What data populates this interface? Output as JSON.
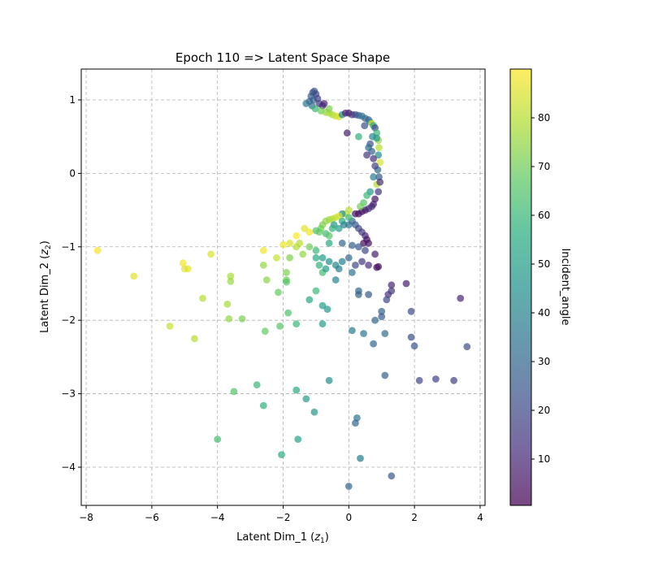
{
  "chart_data": {
    "type": "scatter",
    "title": "Epoch 110 => Latent Space Shape",
    "xlabel": {
      "text": "Latent Dim_1 (",
      "var": "z",
      "sub": "1",
      "close": ")"
    },
    "ylabel": {
      "text": "Latent Dim_2 (",
      "var": "z",
      "sub": "2",
      "close": ")"
    },
    "xlim": [
      -8.15,
      4.15
    ],
    "ylim": [
      -4.52,
      1.42
    ],
    "xticks": [
      -8,
      -6,
      -4,
      -2,
      0,
      2,
      4
    ],
    "yticks": [
      -4,
      -3,
      -2,
      -1,
      0,
      1
    ],
    "xtick_labels": [
      "−8",
      "−6",
      "−4",
      "−2",
      "0",
      "2",
      "4"
    ],
    "ytick_labels": [
      "−4",
      "−3",
      "−2",
      "−1",
      "0",
      "1"
    ],
    "grid": true,
    "marker_alpha": 0.7,
    "colorbar": {
      "label": "Incident_angle",
      "range": [
        0.5,
        90
      ],
      "ticks": [
        10,
        20,
        30,
        40,
        50,
        60,
        70,
        80
      ],
      "tick_labels": [
        "10",
        "20",
        "30",
        "40",
        "50",
        "60",
        "70",
        "80"
      ],
      "colormap": "viridis"
    },
    "points": [
      [
        -1.1,
        1.1,
        22
      ],
      [
        -1.05,
        1.12,
        25
      ],
      [
        -1.15,
        1.05,
        28
      ],
      [
        -1.0,
        1.08,
        20
      ],
      [
        -1.08,
        1.0,
        30
      ],
      [
        -1.2,
        0.98,
        27
      ],
      [
        -0.95,
        1.02,
        18
      ],
      [
        -1.12,
        0.92,
        32
      ],
      [
        -0.9,
        0.95,
        15
      ],
      [
        -0.8,
        0.92,
        12
      ],
      [
        -1.02,
        0.88,
        60
      ],
      [
        -0.85,
        0.85,
        70
      ],
      [
        -0.7,
        0.83,
        75
      ],
      [
        -0.6,
        0.82,
        80
      ],
      [
        -0.5,
        0.8,
        78
      ],
      [
        -0.4,
        0.78,
        82
      ],
      [
        -0.3,
        0.77,
        85
      ],
      [
        -0.2,
        0.8,
        40
      ],
      [
        -0.1,
        0.82,
        10
      ],
      [
        0.0,
        0.82,
        8
      ],
      [
        0.1,
        0.8,
        12
      ],
      [
        0.2,
        0.8,
        20
      ],
      [
        0.3,
        0.79,
        25
      ],
      [
        0.4,
        0.78,
        35
      ],
      [
        0.5,
        0.75,
        30
      ],
      [
        0.6,
        0.73,
        28
      ],
      [
        0.65,
        0.7,
        40
      ],
      [
        0.7,
        0.68,
        85
      ],
      [
        0.75,
        0.65,
        55
      ],
      [
        0.8,
        0.62,
        20
      ],
      [
        0.85,
        0.55,
        60
      ],
      [
        0.9,
        0.45,
        75
      ],
      [
        0.92,
        0.35,
        80
      ],
      [
        0.9,
        0.25,
        45
      ],
      [
        0.95,
        0.15,
        85
      ],
      [
        0.88,
        0.05,
        30
      ],
      [
        0.92,
        -0.05,
        25
      ],
      [
        0.85,
        -0.15,
        80
      ],
      [
        0.9,
        -0.25,
        15
      ],
      [
        0.8,
        -0.35,
        5
      ],
      [
        0.75,
        -0.42,
        8
      ],
      [
        0.7,
        -0.45,
        10
      ],
      [
        0.6,
        -0.48,
        12
      ],
      [
        0.5,
        -0.5,
        6
      ],
      [
        0.4,
        -0.52,
        5
      ],
      [
        0.3,
        -0.55,
        3
      ],
      [
        0.2,
        -0.55,
        4
      ],
      [
        -1.3,
        0.95,
        35
      ],
      [
        -0.75,
        0.95,
        10
      ],
      [
        -0.6,
        0.88,
        72
      ],
      [
        0.7,
        0.3,
        28
      ],
      [
        0.65,
        0.4,
        22
      ],
      [
        0.8,
        0.1,
        18
      ],
      [
        0.75,
        -0.05,
        38
      ],
      [
        0.65,
        -0.25,
        48
      ],
      [
        0.55,
        -0.3,
        60
      ],
      [
        0.45,
        -0.4,
        65
      ],
      [
        0.35,
        -0.45,
        70
      ],
      [
        0.75,
        0.2,
        12
      ],
      [
        0.95,
        -0.12,
        12
      ],
      [
        0.85,
        0.48,
        50
      ],
      [
        0.55,
        0.25,
        15
      ],
      [
        -0.05,
        0.55,
        8
      ],
      [
        0.3,
        0.5,
        58
      ],
      [
        0.6,
        0.35,
        32
      ],
      [
        0.72,
        0.5,
        42
      ],
      [
        0.48,
        0.65,
        22
      ],
      [
        0.0,
        -0.5,
        80
      ],
      [
        -0.1,
        -0.55,
        82
      ],
      [
        -0.2,
        -0.55,
        45
      ],
      [
        -0.3,
        -0.58,
        85
      ],
      [
        -0.4,
        -0.6,
        83
      ],
      [
        -0.5,
        -0.62,
        80
      ],
      [
        -0.6,
        -0.63,
        78
      ],
      [
        -0.7,
        -0.65,
        75
      ],
      [
        -0.8,
        -0.7,
        72
      ],
      [
        -0.85,
        -0.75,
        70
      ],
      [
        -0.9,
        -0.8,
        68
      ],
      [
        -1.0,
        -0.78,
        65
      ],
      [
        -1.2,
        -0.8,
        88
      ],
      [
        -1.35,
        -0.75,
        86
      ],
      [
        -1.6,
        -0.85,
        90
      ],
      [
        -1.8,
        -0.95,
        85
      ],
      [
        -2.0,
        -0.97,
        88
      ],
      [
        -1.5,
        -0.95,
        80
      ],
      [
        -0.2,
        -0.65,
        55
      ],
      [
        -0.3,
        -0.75,
        50
      ],
      [
        -0.45,
        -0.7,
        48
      ],
      [
        -0.15,
        -0.7,
        40
      ],
      [
        0.0,
        -0.7,
        35
      ],
      [
        0.1,
        -0.65,
        30
      ],
      [
        0.2,
        -0.7,
        25
      ],
      [
        0.3,
        -0.75,
        20
      ],
      [
        0.4,
        -0.8,
        15
      ],
      [
        0.5,
        -0.85,
        10
      ],
      [
        0.55,
        -0.9,
        5
      ],
      [
        0.45,
        -0.95,
        3
      ],
      [
        0.6,
        -0.95,
        4
      ],
      [
        0.0,
        -0.6,
        60
      ],
      [
        -0.5,
        -0.75,
        58
      ],
      [
        -0.7,
        -0.82,
        62
      ],
      [
        -0.6,
        -0.85,
        66
      ],
      [
        -0.2,
        -0.95,
        30
      ],
      [
        0.1,
        -0.98,
        28
      ],
      [
        0.3,
        -1.0,
        25
      ],
      [
        0.5,
        -1.05,
        20
      ],
      [
        -0.6,
        -0.95,
        55
      ],
      [
        -1.2,
        -1.0,
        70
      ],
      [
        -1.0,
        -1.05,
        60
      ],
      [
        -0.8,
        -1.15,
        50
      ],
      [
        -0.6,
        -1.2,
        45
      ],
      [
        -0.4,
        -1.25,
        42
      ],
      [
        -0.2,
        -1.2,
        38
      ],
      [
        0.0,
        -1.15,
        30
      ],
      [
        0.2,
        -1.25,
        20
      ],
      [
        0.4,
        -1.2,
        15
      ],
      [
        0.6,
        -1.25,
        12
      ],
      [
        0.8,
        -1.1,
        8
      ],
      [
        0.85,
        -1.28,
        6
      ],
      [
        0.9,
        -1.27,
        4
      ],
      [
        -1.4,
        -1.1,
        75
      ],
      [
        -1.6,
        -1.0,
        80
      ],
      [
        -1.8,
        -1.15,
        72
      ],
      [
        -2.2,
        -1.15,
        82
      ],
      [
        -2.6,
        -1.05,
        88
      ],
      [
        -2.6,
        -1.25,
        75
      ],
      [
        -1.9,
        -1.35,
        72
      ],
      [
        -1.9,
        -1.45,
        70
      ],
      [
        -1.0,
        -1.15,
        55
      ],
      [
        -0.9,
        -1.25,
        58
      ],
      [
        -0.8,
        -1.35,
        62
      ],
      [
        -0.7,
        -1.3,
        50
      ],
      [
        0.1,
        -1.35,
        35
      ],
      [
        -0.3,
        -1.3,
        38
      ],
      [
        -0.4,
        -1.45,
        40
      ],
      [
        0.3,
        -1.6,
        30
      ],
      [
        0.3,
        -1.65,
        28
      ],
      [
        0.6,
        -1.65,
        25
      ],
      [
        1.2,
        -1.65,
        12
      ],
      [
        1.3,
        -1.52,
        10
      ],
      [
        1.75,
        -1.5,
        8
      ],
      [
        1.3,
        -1.6,
        14
      ],
      [
        1.15,
        -1.72,
        20
      ],
      [
        -1.9,
        -1.48,
        65
      ],
      [
        -1.2,
        -1.72,
        55
      ],
      [
        -1.0,
        -1.6,
        60
      ],
      [
        -0.8,
        -1.8,
        50
      ],
      [
        -0.65,
        -1.85,
        48
      ],
      [
        -2.15,
        -1.62,
        68
      ],
      [
        -3.6,
        -1.4,
        78
      ],
      [
        -3.6,
        -1.47,
        76
      ],
      [
        -2.5,
        -1.45,
        74
      ],
      [
        -4.2,
        -1.1,
        85
      ],
      [
        -4.9,
        -1.3,
        87
      ],
      [
        -5.05,
        -1.22,
        88
      ],
      [
        -5.0,
        -1.3,
        86
      ],
      [
        -6.55,
        -1.4,
        86
      ],
      [
        -7.65,
        -1.05,
        89
      ],
      [
        -4.45,
        -1.7,
        80
      ],
      [
        -3.7,
        -1.78,
        78
      ],
      [
        -3.65,
        -1.98,
        75
      ],
      [
        -3.25,
        -1.98,
        72
      ],
      [
        -2.55,
        -2.15,
        68
      ],
      [
        -2.1,
        -2.08,
        66
      ],
      [
        -1.85,
        -1.9,
        64
      ],
      [
        -1.6,
        -2.05,
        60
      ],
      [
        -5.45,
        -2.08,
        82
      ],
      [
        -4.7,
        -2.25,
        80
      ],
      [
        -0.8,
        -2.05,
        50
      ],
      [
        1.0,
        -1.88,
        28
      ],
      [
        0.8,
        -2.0,
        30
      ],
      [
        1.0,
        -1.95,
        25
      ],
      [
        0.45,
        -2.18,
        35
      ],
      [
        0.1,
        -2.14,
        38
      ],
      [
        1.1,
        -2.18,
        32
      ],
      [
        1.9,
        -1.88,
        20
      ],
      [
        1.9,
        -2.23,
        22
      ],
      [
        2.0,
        -2.35,
        24
      ],
      [
        0.75,
        -2.32,
        30
      ],
      [
        3.4,
        -1.7,
        10
      ],
      [
        3.6,
        -2.36,
        22
      ],
      [
        1.1,
        -2.75,
        28
      ],
      [
        2.15,
        -2.82,
        20
      ],
      [
        2.65,
        -2.8,
        18
      ],
      [
        3.2,
        -2.82,
        17
      ],
      [
        -0.6,
        -2.82,
        45
      ],
      [
        -1.6,
        -2.95,
        55
      ],
      [
        -1.3,
        -3.07,
        50
      ],
      [
        -1.05,
        -3.25,
        48
      ],
      [
        -2.8,
        -2.88,
        60
      ],
      [
        -3.5,
        -2.97,
        65
      ],
      [
        -2.6,
        -3.16,
        58
      ],
      [
        0.25,
        -3.33,
        35
      ],
      [
        0.2,
        -3.4,
        30
      ],
      [
        -1.55,
        -3.62,
        52
      ],
      [
        -4.0,
        -3.62,
        62
      ],
      [
        -2.05,
        -3.83,
        56
      ],
      [
        0.35,
        -3.88,
        38
      ],
      [
        1.3,
        -4.12,
        25
      ],
      [
        0.0,
        -4.26,
        30
      ]
    ]
  }
}
